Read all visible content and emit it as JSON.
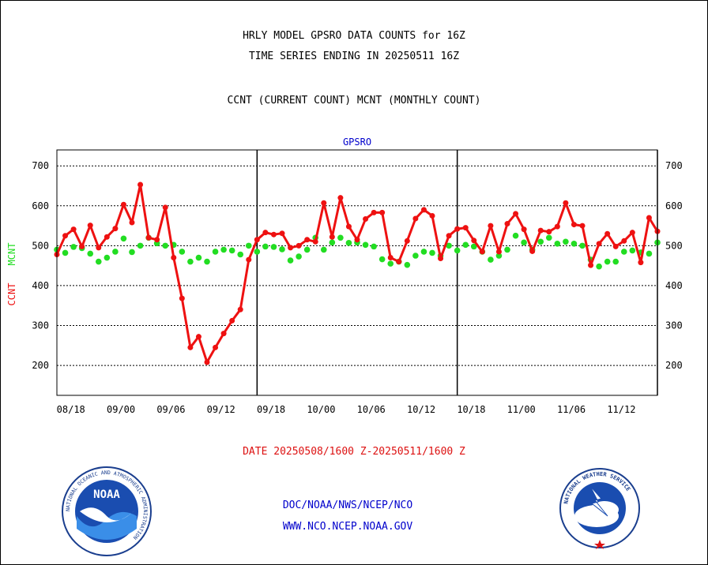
{
  "header": {
    "line1": "HRLY MODEL GPSRO DATA COUNTS for 16Z",
    "line2": "TIME SERIES ENDING IN 20250511 16Z",
    "line3": "CCNT (CURRENT COUNT) MCNT (MONTHLY COUNT)"
  },
  "footer": {
    "date_range": "DATE 20250508/1600 Z-20250511/1600 Z",
    "link1": "DOC/NOAA/NWS/NCEP/NCO",
    "link2": "WWW.NCO.NCEP.NOAA.GOV"
  },
  "logos": {
    "noaa_text": "NOAA",
    "noaa_ring": "NATIONAL OCEANIC AND ATMOSPHERIC ADMINISTRATION",
    "noaa_ring_bottom": "U.S. DEPARTMENT OF COMMERCE",
    "nws_ring": "NATIONAL WEATHER SERVICE"
  },
  "colors": {
    "ccnt": "#ee1111",
    "mcnt": "#22dd22",
    "title": "#0000cc",
    "date": "#dd1111"
  },
  "chart_data": {
    "type": "line",
    "title": "GPSRO",
    "ylabel_ccnt": "CCNT",
    "ylabel_mcnt": "MCNT",
    "ylim": [
      125,
      740
    ],
    "yticks": [
      200,
      300,
      400,
      500,
      600,
      700
    ],
    "x_tick_labels": [
      "08/18",
      "09/00",
      "09/06",
      "09/12",
      "09/18",
      "10/00",
      "10/06",
      "10/12",
      "10/18",
      "11/00",
      "11/06",
      "11/12"
    ],
    "day_boundaries_at_hour": [
      24,
      48,
      72
    ],
    "grid": true,
    "x": [
      0,
      1,
      2,
      3,
      4,
      5,
      6,
      7,
      8,
      9,
      10,
      11,
      12,
      13,
      14,
      15,
      16,
      17,
      18,
      19,
      20,
      21,
      22,
      23,
      24,
      25,
      26,
      27,
      28,
      29,
      30,
      31,
      32,
      33,
      34,
      35,
      36,
      37,
      38,
      39,
      40,
      41,
      42,
      43,
      44,
      45,
      46,
      47,
      48,
      49,
      50,
      51,
      52,
      53,
      54,
      55,
      56,
      57,
      58,
      59,
      60,
      61,
      62,
      63,
      64,
      65,
      66,
      67,
      68,
      69,
      70,
      71,
      72
    ],
    "series": [
      {
        "name": "CCNT",
        "values": [
          478,
          525,
          541,
          498,
          551,
          495,
          522,
          543,
          603,
          558,
          653,
          520,
          515,
          596,
          470,
          368,
          245,
          272,
          208,
          245,
          280,
          312,
          340,
          465,
          515,
          533,
          528,
          531,
          495,
          500,
          515,
          510,
          607,
          522,
          620,
          548,
          515,
          567,
          583,
          583,
          470,
          460,
          512,
          568,
          590,
          575,
          468,
          525,
          542,
          545,
          513,
          485,
          550,
          485,
          555,
          580,
          541,
          486,
          538,
          535,
          548,
          607,
          553,
          550,
          451,
          505,
          530,
          498,
          512,
          533,
          458,
          570,
          536
        ]
      },
      {
        "name": "MCNT",
        "values": [
          490,
          482,
          497,
          494,
          480,
          460,
          470,
          485,
          518,
          484,
          500,
          520,
          506,
          500,
          502,
          485,
          460,
          470,
          460,
          485,
          490,
          488,
          478,
          500,
          485,
          498,
          497,
          491,
          463,
          473,
          490,
          520,
          490,
          508,
          520,
          507,
          508,
          502,
          498,
          466,
          455,
          460,
          452,
          475,
          485,
          482,
          475,
          500,
          488,
          502,
          498,
          485,
          465,
          475,
          490,
          525,
          508,
          490,
          510,
          520,
          505,
          510,
          505,
          500,
          465,
          448,
          460,
          460,
          485,
          488,
          483,
          480,
          508
        ]
      }
    ]
  }
}
